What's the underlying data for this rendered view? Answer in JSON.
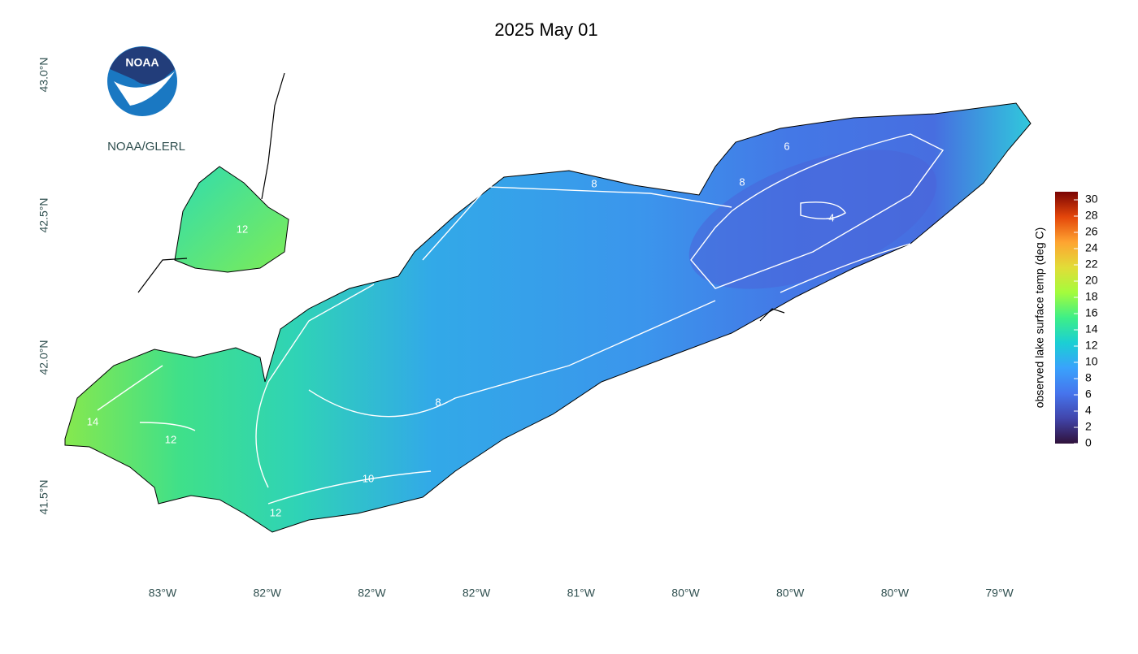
{
  "title": "2025 May 01",
  "credit": "NOAA/GLERL",
  "logo_text": "NOAA",
  "lat_labels": [
    "43.0°N",
    "42.5°N",
    "42.0°N",
    "41.5°N"
  ],
  "lon_labels": [
    "83°W",
    "82°W",
    "82°W",
    "82°W",
    "81°W",
    "80°W",
    "80°W",
    "80°W",
    "79°W"
  ],
  "colorbar": {
    "label": "observed lake surface temp (deg C)",
    "lim": [
      0,
      31
    ],
    "ticks": [
      0,
      2,
      4,
      6,
      8,
      10,
      12,
      14,
      16,
      18,
      20,
      22,
      24,
      26,
      28,
      30
    ]
  },
  "contour_labels": [
    8,
    6,
    8,
    4,
    12,
    8,
    14,
    12,
    10,
    12
  ]
}
